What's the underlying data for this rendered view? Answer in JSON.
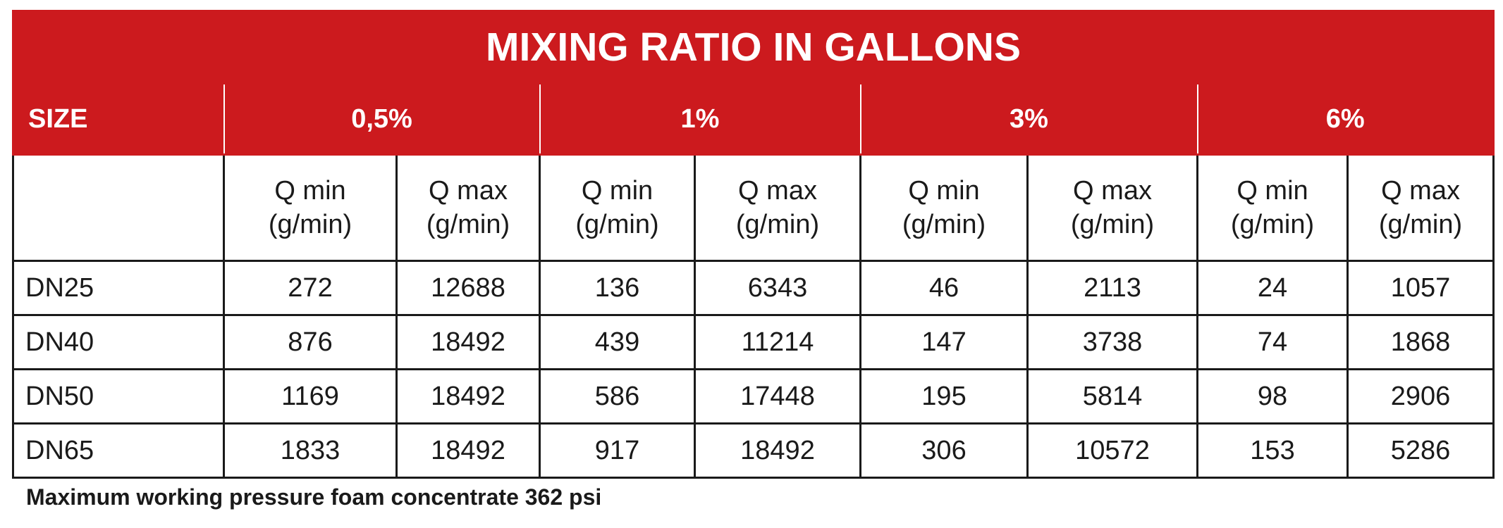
{
  "title": "MIXING RATIO IN GALLONS",
  "header": {
    "size_label": "SIZE",
    "ratios": [
      "0,5%",
      "1%",
      "3%",
      "6%"
    ]
  },
  "subheader": {
    "q_min": [
      "Q min",
      "(g/min)"
    ],
    "q_max": [
      "Q max",
      "(g/min)"
    ]
  },
  "rows": [
    {
      "size": "DN25",
      "values": [
        "272",
        "12688",
        "136",
        "6343",
        "46",
        "2113",
        "24",
        "1057"
      ]
    },
    {
      "size": "DN40",
      "values": [
        "876",
        "18492",
        "439",
        "11214",
        "147",
        "3738",
        "74",
        "1868"
      ]
    },
    {
      "size": "DN50",
      "values": [
        "1169",
        "18492",
        "586",
        "17448",
        "195",
        "5814",
        "98",
        "2906"
      ]
    },
    {
      "size": "DN65",
      "values": [
        "1833",
        "18492",
        "917",
        "18492",
        "306",
        "10572",
        "153",
        "5286"
      ]
    }
  ],
  "footer": "Maximum working pressure foam concentrate 362 psi",
  "colors": {
    "header_red": "#cc1a1e",
    "header_text": "#ffffff",
    "grid_line": "#1a1a1a"
  }
}
